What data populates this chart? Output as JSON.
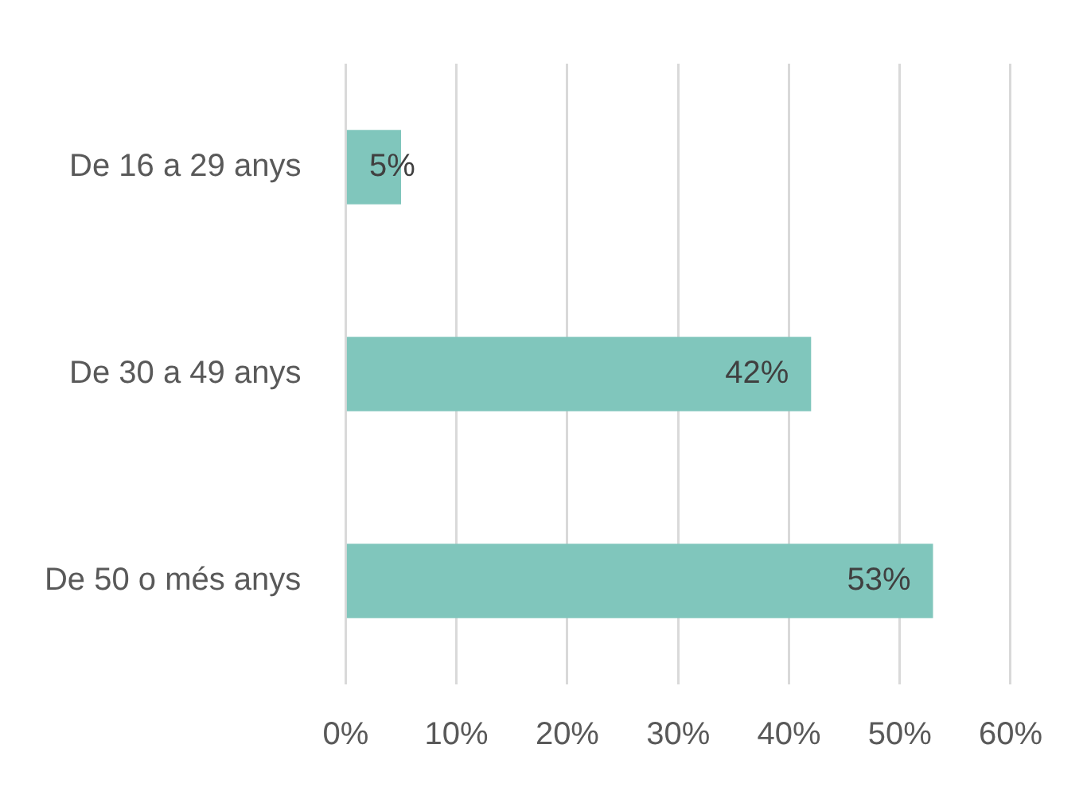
{
  "chart_data": {
    "type": "bar",
    "orientation": "horizontal",
    "categories": [
      "De 16 a 29 anys",
      "De 30 a 49 anys",
      "De 50 o més anys"
    ],
    "values": [
      5,
      42,
      53
    ],
    "value_labels": [
      "5%",
      "42%",
      "53%"
    ],
    "color": "#80c6bc",
    "xlim": [
      0,
      60
    ],
    "xticks": [
      {
        "value": 0,
        "label": "0%"
      },
      {
        "value": 10,
        "label": "10%"
      },
      {
        "value": 20,
        "label": "20%"
      },
      {
        "value": 30,
        "label": "30%"
      },
      {
        "value": 40,
        "label": "40%"
      },
      {
        "value": 50,
        "label": "50%"
      },
      {
        "value": 60,
        "label": "60%"
      }
    ],
    "grid": "x"
  }
}
